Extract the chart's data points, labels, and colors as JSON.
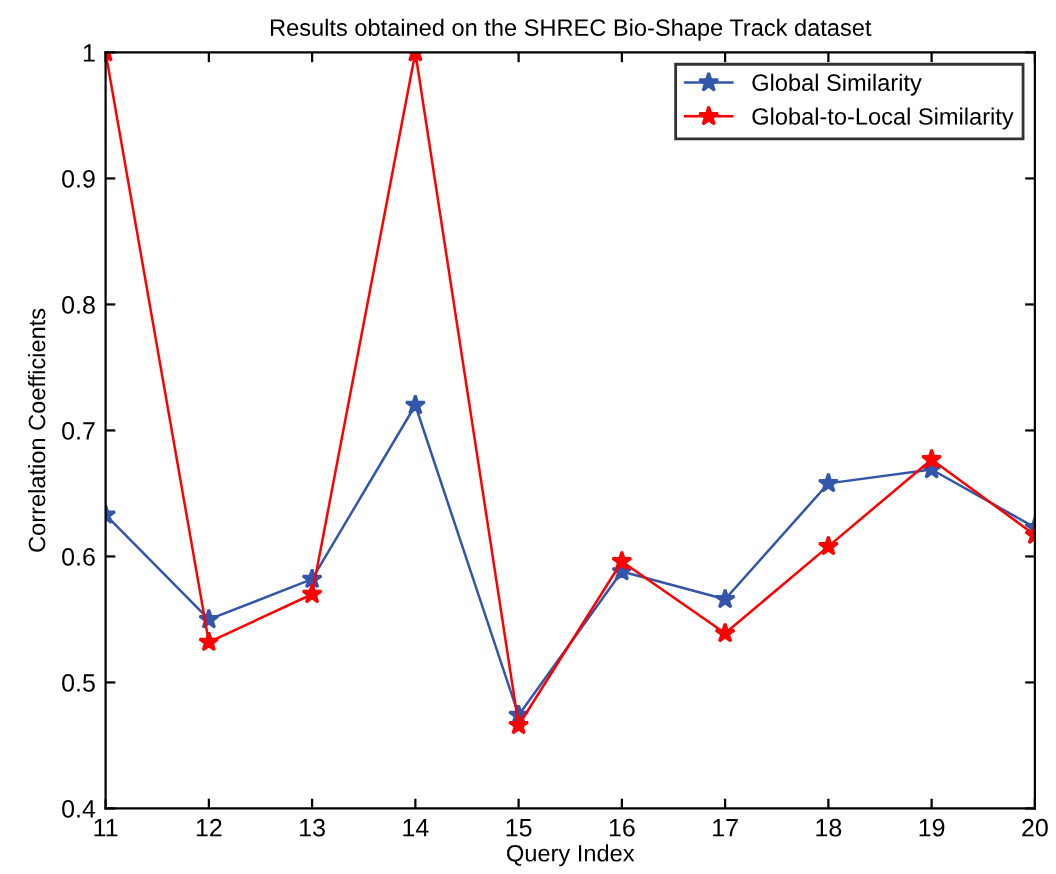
{
  "chart_data": {
    "type": "line",
    "title": "Results obtained on the SHREC Bio-Shape Track dataset",
    "xlabel": "Query Index",
    "ylabel": "Correlation Coefficients",
    "x": [
      11,
      12,
      13,
      14,
      15,
      16,
      17,
      18,
      19,
      20
    ],
    "series": [
      {
        "name": "Global Similarity",
        "color": "#3355aa",
        "values": [
          0.633,
          0.55,
          0.582,
          0.72,
          0.474,
          0.588,
          0.566,
          0.658,
          0.669,
          0.623
        ]
      },
      {
        "name": "Global-to-Local Similarity",
        "color": "#ff0000",
        "values": [
          1.0,
          0.532,
          0.57,
          1.0,
          0.466,
          0.596,
          0.539,
          0.608,
          0.677,
          0.617
        ]
      }
    ],
    "xlim": [
      11,
      20
    ],
    "xticks": [
      11,
      12,
      13,
      14,
      15,
      16,
      17,
      18,
      19,
      20
    ],
    "ylim": [
      0.4,
      1
    ],
    "yticks": [
      0.4,
      0.5,
      0.6,
      0.7,
      0.8,
      0.9,
      1
    ],
    "marker": "star",
    "line_style": "solid",
    "legend": "top right",
    "grid": false
  }
}
